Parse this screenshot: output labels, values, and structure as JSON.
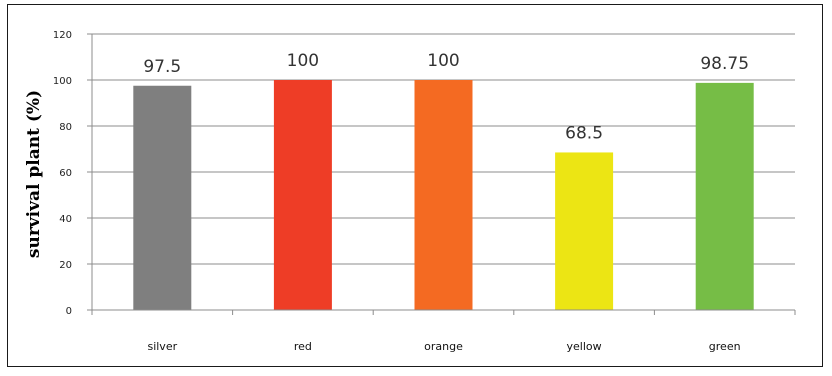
{
  "chart_data": {
    "type": "bar",
    "title": "",
    "xlabel": "",
    "ylabel": "survival plant (%)",
    "categories": [
      "silver",
      "red",
      "orange",
      "yellow",
      "green"
    ],
    "values": [
      97.5,
      100,
      100,
      68.5,
      98.75
    ],
    "data_labels": [
      "97.5",
      "100",
      "100",
      "68.5",
      "98.75"
    ],
    "colors": [
      "#7f7f7f",
      "#ee3d26",
      "#f46a22",
      "#ece514",
      "#76bd46"
    ],
    "ylim": [
      0,
      120
    ],
    "yticks": [
      0,
      20,
      40,
      60,
      80,
      100,
      120
    ],
    "grid": true,
    "legend": "none"
  }
}
